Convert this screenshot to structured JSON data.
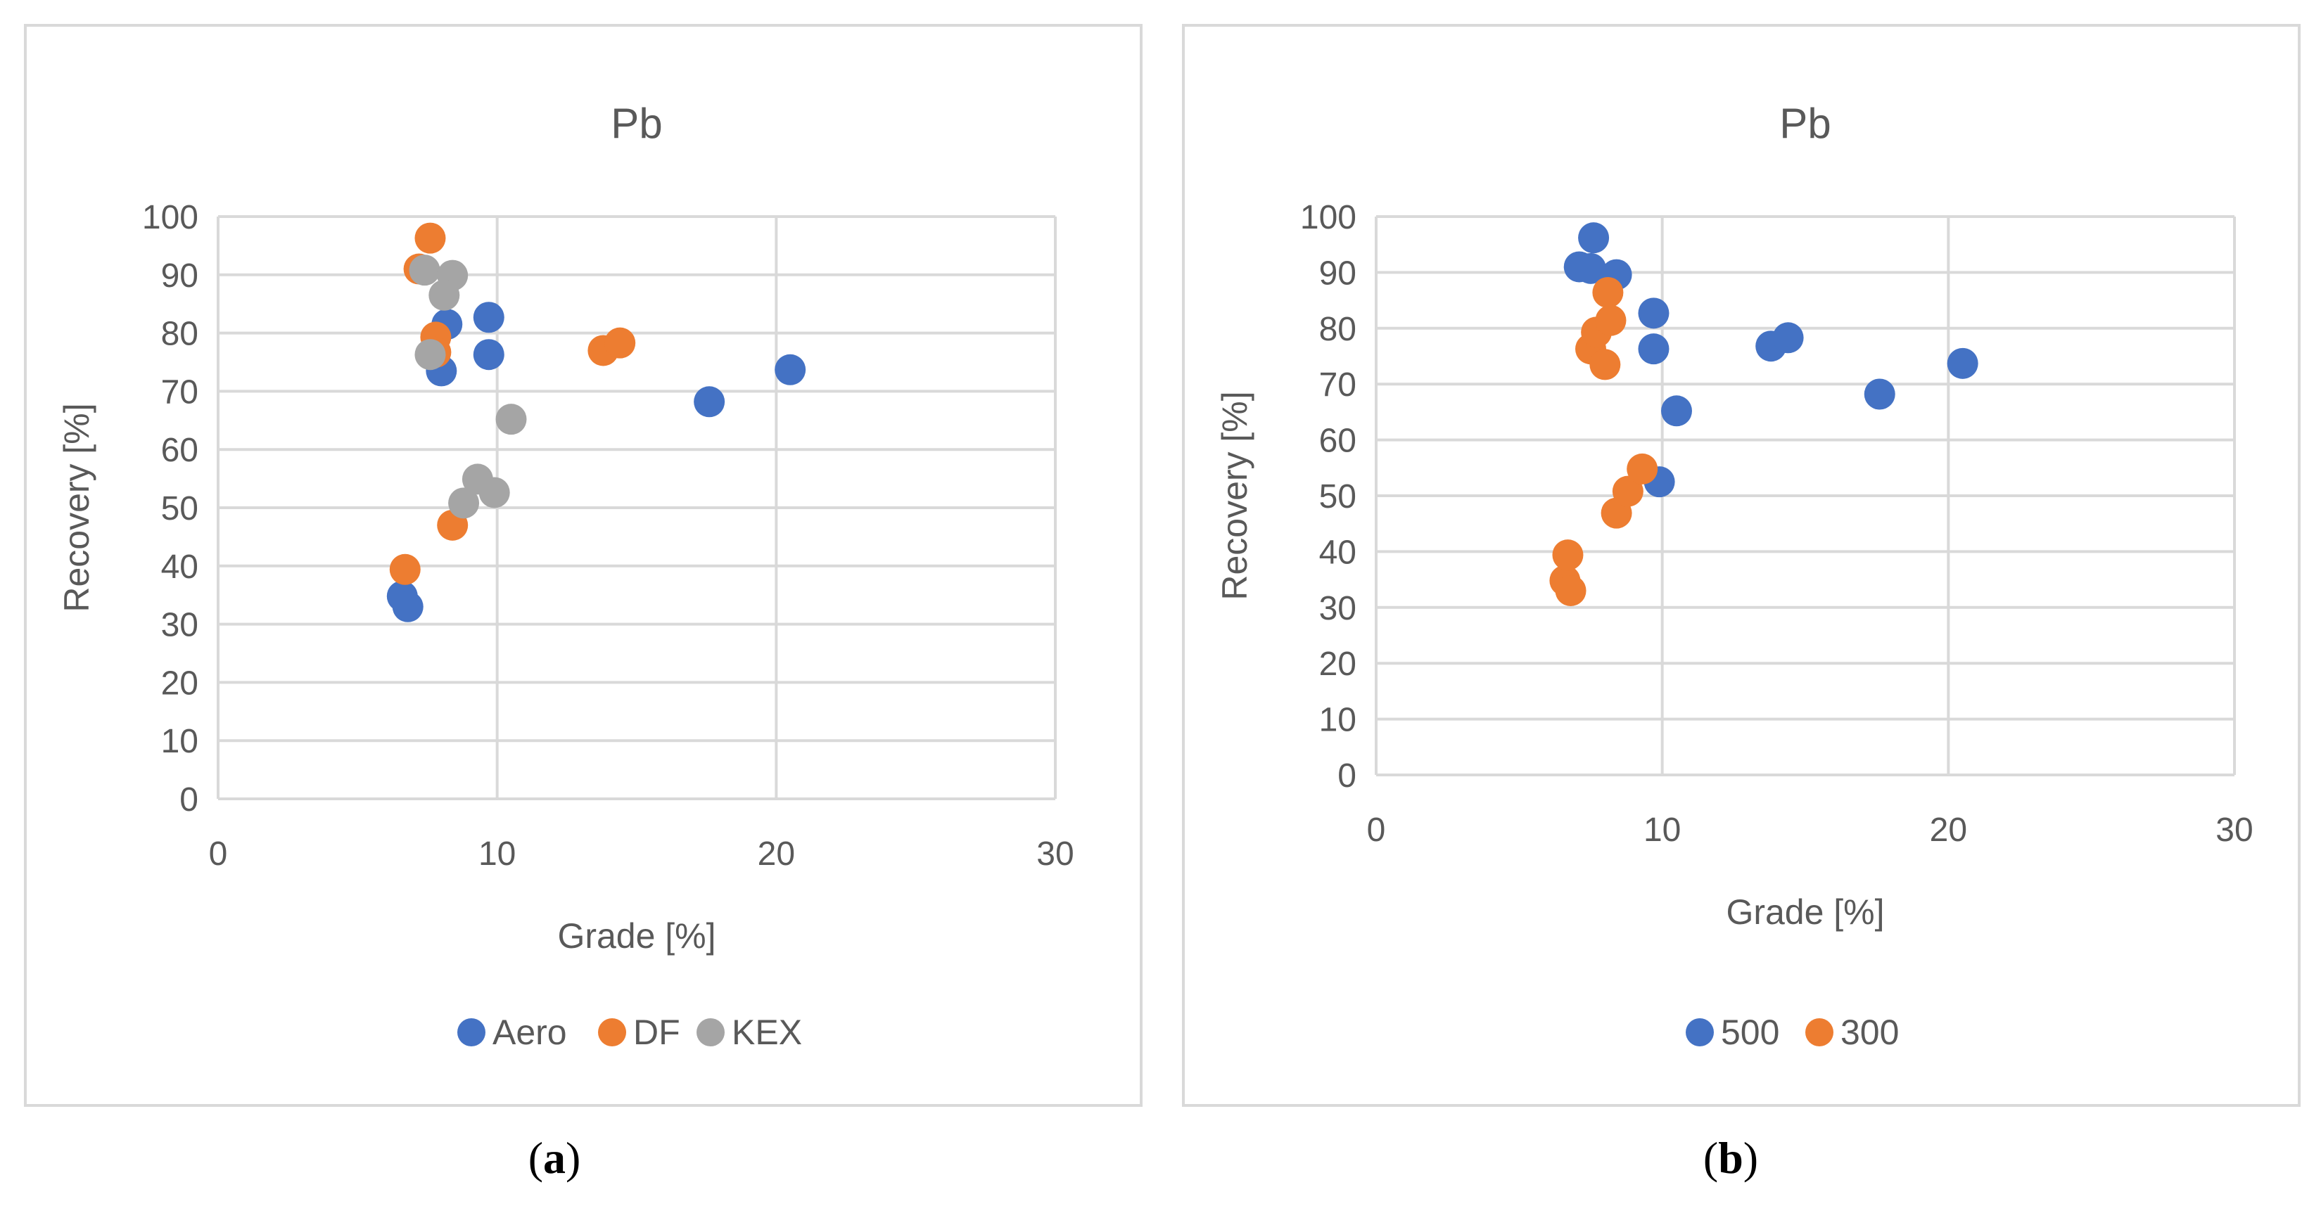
{
  "colors": {
    "blue": "#4472c4",
    "orange": "#ed7d31",
    "gray": "#a5a5a5",
    "grid": "#d9d9d9",
    "text": "#595959"
  },
  "chart_data": [
    {
      "type": "scatter",
      "title": "Pb",
      "xlabel": "Grade [%]",
      "ylabel": "Recovery [%]",
      "xlim": [
        0,
        30
      ],
      "ylim": [
        0,
        100
      ],
      "x_ticks": [
        0,
        10,
        20,
        30
      ],
      "y_ticks": [
        0,
        10,
        20,
        30,
        40,
        50,
        60,
        70,
        80,
        90,
        100
      ],
      "grid": true,
      "legend_position": "bottom",
      "series": [
        {
          "name": "Aero",
          "color": "#4472c4",
          "points": [
            [
              6.6,
              34.8
            ],
            [
              6.8,
              33.0
            ],
            [
              8.0,
              73.5
            ],
            [
              8.2,
              81.5
            ],
            [
              9.7,
              82.7
            ],
            [
              9.7,
              76.3
            ],
            [
              17.6,
              68.2
            ],
            [
              20.5,
              73.7
            ]
          ]
        },
        {
          "name": "DF",
          "color": "#ed7d31",
          "points": [
            [
              7.2,
              91.0
            ],
            [
              7.6,
              96.3
            ],
            [
              7.8,
              79.3
            ],
            [
              7.8,
              76.7
            ],
            [
              6.7,
              39.4
            ],
            [
              8.4,
              47.0
            ],
            [
              13.8,
              77.0
            ],
            [
              14.4,
              78.3
            ]
          ]
        },
        {
          "name": "KEX",
          "color": "#a5a5a5",
          "points": [
            [
              7.4,
              90.8
            ],
            [
              8.4,
              89.9
            ],
            [
              8.1,
              86.5
            ],
            [
              7.6,
              76.3
            ],
            [
              10.5,
              65.2
            ],
            [
              9.3,
              54.9
            ],
            [
              9.9,
              52.6
            ],
            [
              8.8,
              50.8
            ]
          ]
        }
      ]
    },
    {
      "type": "scatter",
      "title": "Pb",
      "xlabel": "Grade [%]",
      "ylabel": "Recovery [%]",
      "xlim": [
        0,
        30
      ],
      "ylim": [
        0,
        100
      ],
      "x_ticks": [
        0,
        10,
        20,
        30
      ],
      "y_ticks": [
        0,
        10,
        20,
        30,
        40,
        50,
        60,
        70,
        80,
        90,
        100
      ],
      "grid": true,
      "legend_position": "bottom",
      "series": [
        {
          "name": "500",
          "color": "#4472c4",
          "points": [
            [
              7.1,
              91.0
            ],
            [
              7.5,
              90.7
            ],
            [
              7.6,
              96.2
            ],
            [
              8.4,
              89.6
            ],
            [
              9.7,
              82.7
            ],
            [
              9.7,
              76.3
            ],
            [
              10.5,
              65.2
            ],
            [
              9.9,
              52.5
            ],
            [
              13.8,
              76.8
            ],
            [
              14.4,
              78.3
            ],
            [
              17.6,
              68.2
            ],
            [
              20.5,
              73.7
            ]
          ]
        },
        {
          "name": "300",
          "color": "#ed7d31",
          "points": [
            [
              6.6,
              34.8
            ],
            [
              6.8,
              33.0
            ],
            [
              6.7,
              39.4
            ],
            [
              7.5,
              76.3
            ],
            [
              7.7,
              79.3
            ],
            [
              8.0,
              73.5
            ],
            [
              8.1,
              86.4
            ],
            [
              8.2,
              81.4
            ],
            [
              8.4,
              46.9
            ],
            [
              8.8,
              50.8
            ],
            [
              9.3,
              54.8
            ]
          ]
        }
      ]
    }
  ],
  "captions": [
    {
      "open": "(",
      "letter": "a",
      "close": ")"
    },
    {
      "open": "(",
      "letter": "b",
      "close": ")"
    }
  ]
}
